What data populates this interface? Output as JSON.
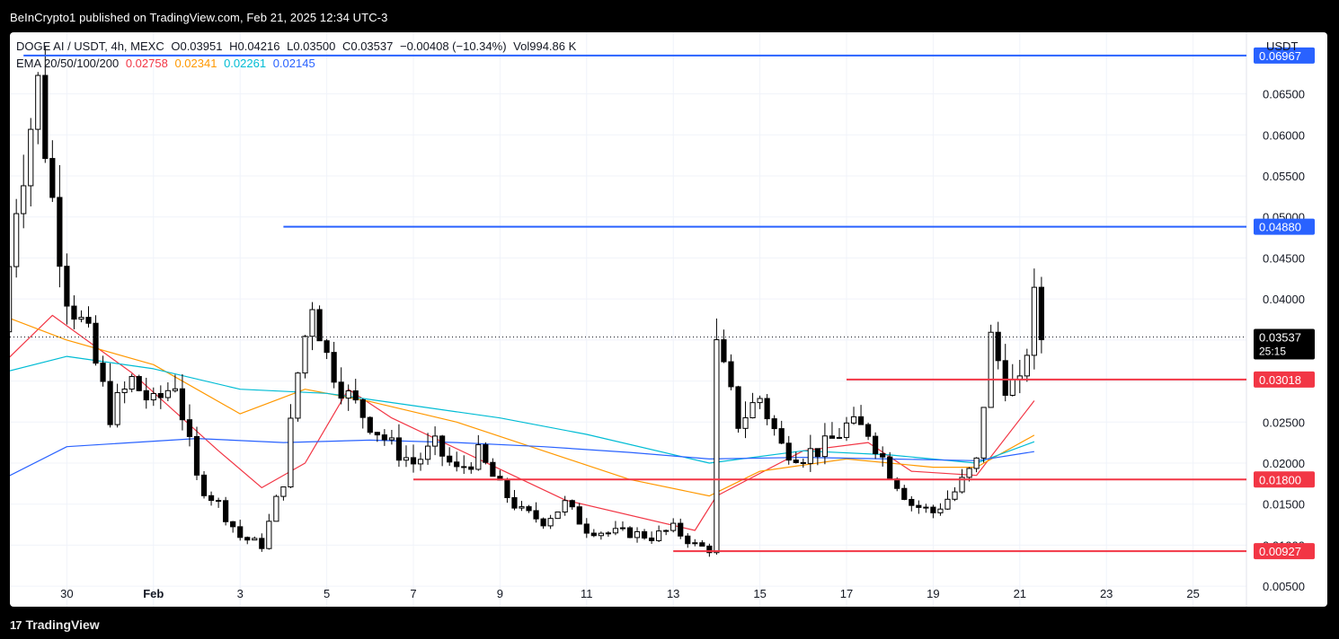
{
  "header": {
    "published": "BeInCrypto1 published on TradingView.com, Feb 21, 2025 12:34 UTC-3"
  },
  "footer": {
    "brand": "TradingView",
    "logo_glyph": "17"
  },
  "legend": {
    "symbol": "DOGE AI / USDT, 4h, MEXC",
    "open_label": "O",
    "open": "0.03951",
    "high_label": "H",
    "high": "0.04216",
    "low_label": "L",
    "low": "0.03500",
    "close_label": "C",
    "close": "0.03537",
    "change": "−0.00408 (−10.34%)",
    "vol_label": "Vol",
    "vol": "994.86 K",
    "ema_label": "EMA 20/50/100/200",
    "ema20": "0.02758",
    "ema50": "0.02341",
    "ema100": "0.02261",
    "ema200": "0.02145"
  },
  "colors": {
    "ema20": "#f23645",
    "ema50": "#ff9800",
    "ema100": "#00bcd4",
    "ema200": "#2962ff",
    "resistance": "#2962ff",
    "support": "#f23645",
    "candle": "#000000",
    "grid": "#f0f3fa"
  },
  "chart_data": {
    "type": "candlestick",
    "unit": "USDT",
    "ylim": [
      0.0025,
      0.0725
    ],
    "y_ticks": [
      "0.00500",
      "0.01000",
      "0.01500",
      "0.02000",
      "0.02500",
      "0.03000",
      "0.03500",
      "0.04000",
      "0.04500",
      "0.05000",
      "0.05500",
      "0.06000",
      "0.06500"
    ],
    "x_ticks": [
      "30",
      "Feb",
      "3",
      "5",
      "7",
      "9",
      "11",
      "13",
      "15",
      "17",
      "19",
      "21",
      "23",
      "25"
    ],
    "grid": true,
    "last_price": "0.03537",
    "countdown": "25:15",
    "levels": [
      {
        "label": "0.06967",
        "value": 0.06967,
        "kind": "resistance",
        "from": "Jan 29"
      },
      {
        "label": "0.04880",
        "value": 0.0488,
        "kind": "resistance",
        "from": "Feb 4"
      },
      {
        "label": "0.03018",
        "value": 0.03018,
        "kind": "support",
        "from": "Feb 17"
      },
      {
        "label": "0.01800",
        "value": 0.018,
        "kind": "support",
        "from": "Feb 7"
      },
      {
        "label": "0.00927",
        "value": 0.00927,
        "kind": "support",
        "from": "Feb 13"
      }
    ],
    "candle_close_path": [
      [
        "Jan 28 12:00",
        0.036
      ],
      [
        "Jan 28 20:00",
        0.052
      ],
      [
        "Jan 29 08:00",
        0.066
      ],
      [
        "Jan 29 16:00",
        0.052
      ],
      [
        "Jan 30 00:00",
        0.041
      ],
      [
        "Jan 30 12:00",
        0.035
      ],
      [
        "Jan 31 00:00",
        0.026
      ],
      [
        "Jan 31 12:00",
        0.03
      ],
      [
        "Feb 1 00:00",
        0.027
      ],
      [
        "Feb 1 12:00",
        0.03
      ],
      [
        "Feb 2 00:00",
        0.018
      ],
      [
        "Feb 2 12:00",
        0.015
      ],
      [
        "Feb 3 00:00",
        0.011
      ],
      [
        "Feb 3 12:00",
        0.01
      ],
      [
        "Feb 4 00:00",
        0.018
      ],
      [
        "Feb 4 08:00",
        0.031
      ],
      [
        "Feb 4 16:00",
        0.04
      ],
      [
        "Feb 5 00:00",
        0.033
      ],
      [
        "Feb 5 12:00",
        0.028
      ],
      [
        "Feb 6 00:00",
        0.025
      ],
      [
        "Feb 6 12:00",
        0.022
      ],
      [
        "Feb 7 00:00",
        0.02
      ],
      [
        "Feb 7 12:00",
        0.022
      ],
      [
        "Feb 8 00:00",
        0.019
      ],
      [
        "Feb 8 12:00",
        0.021
      ],
      [
        "Feb 9 00:00",
        0.017
      ],
      [
        "Feb 9 12:00",
        0.014
      ],
      [
        "Feb 10 00:00",
        0.013
      ],
      [
        "Feb 10 12:00",
        0.015
      ],
      [
        "Feb 11 00:00",
        0.012
      ],
      [
        "Feb 11 12:00",
        0.0115
      ],
      [
        "Feb 12 00:00",
        0.0115
      ],
      [
        "Feb 12 12:00",
        0.011
      ],
      [
        "Feb 13 00:00",
        0.012
      ],
      [
        "Feb 13 12:00",
        0.01
      ],
      [
        "Feb 13 20:00",
        0.0095
      ],
      [
        "Feb 14 00:00",
        0.034
      ],
      [
        "Feb 14 12:00",
        0.025
      ],
      [
        "Feb 15 00:00",
        0.028
      ],
      [
        "Feb 15 12:00",
        0.022
      ],
      [
        "Feb 16 00:00",
        0.021
      ],
      [
        "Feb 16 12:00",
        0.022
      ],
      [
        "Feb 17 00:00",
        0.0245
      ],
      [
        "Feb 17 12:00",
        0.024
      ],
      [
        "Feb 18 00:00",
        0.019
      ],
      [
        "Feb 18 12:00",
        0.015
      ],
      [
        "Feb 19 00:00",
        0.014
      ],
      [
        "Feb 19 12:00",
        0.0165
      ],
      [
        "Feb 20 00:00",
        0.02
      ],
      [
        "Feb 20 08:00",
        0.035
      ],
      [
        "Feb 20 16:00",
        0.03
      ],
      [
        "Feb 21 00:00",
        0.029
      ],
      [
        "Feb 21 08:00",
        0.0395
      ],
      [
        "Feb 21 12:00",
        0.0354
      ]
    ],
    "ema_series": [
      {
        "name": "EMA 20",
        "color": "#f23645",
        "points": [
          [
            "Jan 28 12:00",
            0.032
          ],
          [
            "Jan 29 16:00",
            0.038
          ],
          [
            "Jan 31 12:00",
            0.031
          ],
          [
            "Feb 2 12:00",
            0.0215
          ],
          [
            "Feb 3 12:00",
            0.017
          ],
          [
            "Feb 4 12:00",
            0.02
          ],
          [
            "Feb 5 12:00",
            0.029
          ],
          [
            "Feb 6 12:00",
            0.0255
          ],
          [
            "Feb 8 12:00",
            0.0205
          ],
          [
            "Feb 10 12:00",
            0.0155
          ],
          [
            "Feb 13 12:00",
            0.0118
          ],
          [
            "Feb 14 00:00",
            0.016
          ],
          [
            "Feb 16 00:00",
            0.0215
          ],
          [
            "Feb 17 12:00",
            0.0225
          ],
          [
            "Feb 18 12:00",
            0.019
          ],
          [
            "Feb 20 00:00",
            0.0185
          ],
          [
            "Feb 21 08:00",
            0.0276
          ]
        ]
      },
      {
        "name": "EMA 50",
        "color": "#ff9800",
        "points": [
          [
            "Jan 28 12:00",
            0.038
          ],
          [
            "Jan 30 00:00",
            0.035
          ],
          [
            "Feb 1 00:00",
            0.032
          ],
          [
            "Feb 3 00:00",
            0.026
          ],
          [
            "Feb 4 12:00",
            0.029
          ],
          [
            "Feb 6 00:00",
            0.0275
          ],
          [
            "Feb 8 00:00",
            0.025
          ],
          [
            "Feb 10 00:00",
            0.0215
          ],
          [
            "Feb 12 00:00",
            0.018
          ],
          [
            "Feb 13 20:00",
            0.016
          ],
          [
            "Feb 15 00:00",
            0.019
          ],
          [
            "Feb 17 00:00",
            0.0205
          ],
          [
            "Feb 19 00:00",
            0.0195
          ],
          [
            "Feb 20 00:00",
            0.0195
          ],
          [
            "Feb 21 08:00",
            0.0234
          ]
        ]
      },
      {
        "name": "EMA 100",
        "color": "#00bcd4",
        "points": [
          [
            "Jan 28 12:00",
            0.031
          ],
          [
            "Jan 30 00:00",
            0.033
          ],
          [
            "Feb 1 00:00",
            0.0315
          ],
          [
            "Feb 3 00:00",
            0.029
          ],
          [
            "Feb 5 00:00",
            0.0285
          ],
          [
            "Feb 7 00:00",
            0.027
          ],
          [
            "Feb 9 00:00",
            0.0255
          ],
          [
            "Feb 11 00:00",
            0.0235
          ],
          [
            "Feb 13 20:00",
            0.02
          ],
          [
            "Feb 16 00:00",
            0.0215
          ],
          [
            "Feb 18 00:00",
            0.021
          ],
          [
            "Feb 20 00:00",
            0.02
          ],
          [
            "Feb 21 08:00",
            0.0226
          ]
        ]
      },
      {
        "name": "EMA 200",
        "color": "#2962ff",
        "points": [
          [
            "Jan 28 12:00",
            0.018
          ],
          [
            "Jan 30 00:00",
            0.022
          ],
          [
            "Feb 2 00:00",
            0.023
          ],
          [
            "Feb 4 00:00",
            0.0225
          ],
          [
            "Feb 6 00:00",
            0.0228
          ],
          [
            "Feb 8 00:00",
            0.0225
          ],
          [
            "Feb 10 00:00",
            0.022
          ],
          [
            "Feb 12 00:00",
            0.0213
          ],
          [
            "Feb 13 20:00",
            0.0205
          ],
          [
            "Feb 16 00:00",
            0.0207
          ],
          [
            "Feb 18 00:00",
            0.0205
          ],
          [
            "Feb 20 00:00",
            0.0203
          ],
          [
            "Feb 21 08:00",
            0.0214
          ]
        ]
      }
    ]
  }
}
